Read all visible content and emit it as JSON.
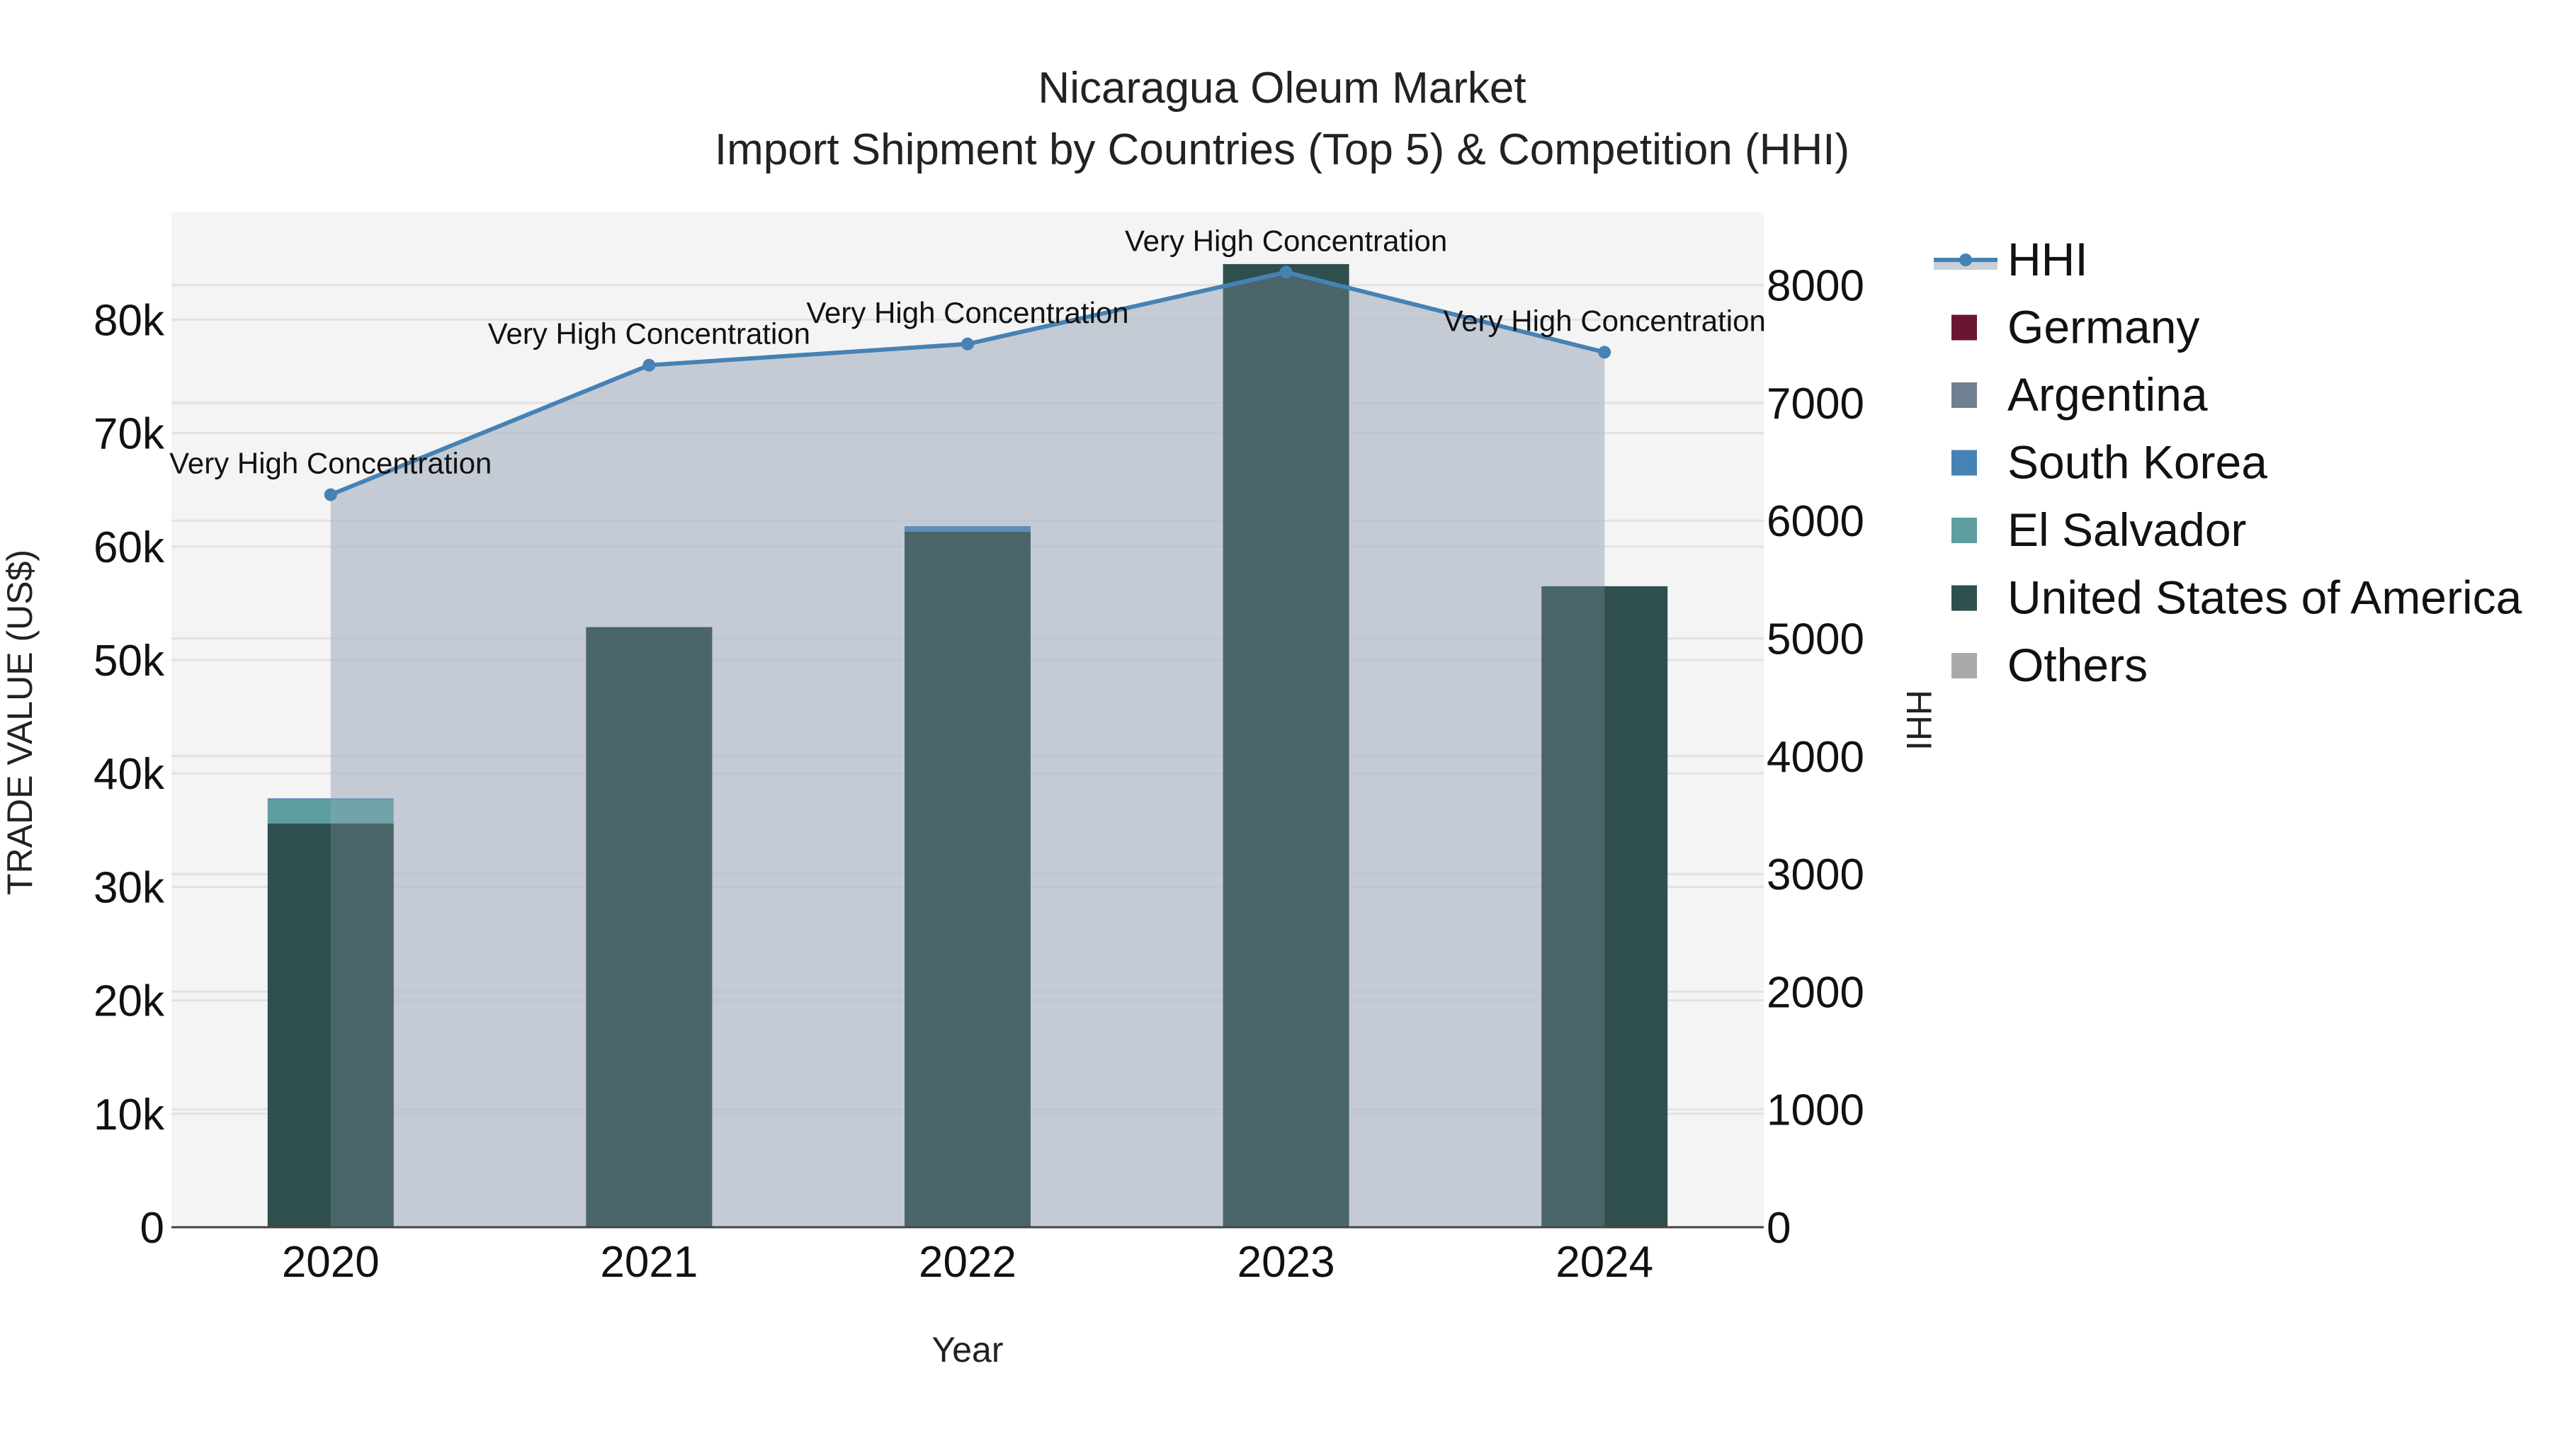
{
  "title": {
    "line1": "Nicaragua Oleum Market",
    "line2": "Import Shipment by Countries (Top 5) & Competition (HHI)"
  },
  "axes": {
    "x_label": "Year",
    "y_left_label": "TRADE VALUE (US$)",
    "y_right_label": "HHI",
    "y_left_ticks": [
      "0",
      "10k",
      "20k",
      "30k",
      "40k",
      "50k",
      "60k",
      "70k",
      "80k"
    ],
    "y_right_ticks": [
      "0",
      "1000",
      "2000",
      "3000",
      "4000",
      "5000",
      "6000",
      "7000",
      "8000"
    ],
    "x_ticks": [
      "2020",
      "2021",
      "2022",
      "2023",
      "2024"
    ]
  },
  "legend": {
    "items": [
      {
        "label": "HHI",
        "color": "#4682b4",
        "type": "line"
      },
      {
        "label": "Germany",
        "color": "#6b1535",
        "type": "bar"
      },
      {
        "label": "Argentina",
        "color": "#708090",
        "type": "bar"
      },
      {
        "label": "South Korea",
        "color": "#4682b4",
        "type": "bar"
      },
      {
        "label": "El Salvador",
        "color": "#5f9ea0",
        "type": "bar"
      },
      {
        "label": "United States of America",
        "color": "#2f4f4f",
        "type": "bar"
      },
      {
        "label": "Others",
        "color": "#a9a9a9",
        "type": "bar"
      }
    ]
  },
  "chart_data": {
    "type": "bar",
    "title": "Nicaragua Oleum Market - Import Shipment by Countries (Top 5) & Competition (HHI)",
    "xlabel": "Year",
    "ylabel": "TRADE VALUE (US$)",
    "y2label": "HHI",
    "ylim": [
      0,
      89000
    ],
    "y2lim": [
      0,
      8600
    ],
    "barmode": "stack",
    "categories": [
      "2020",
      "2021",
      "2022",
      "2023",
      "2024"
    ],
    "series": [
      {
        "name": "Germany",
        "color": "#6b1535",
        "values": [
          0,
          0,
          0,
          0,
          0
        ]
      },
      {
        "name": "Argentina",
        "color": "#708090",
        "values": [
          0,
          0,
          0,
          0,
          0
        ]
      },
      {
        "name": "United States of America",
        "color": "#2f4f4f",
        "values": [
          35600,
          52900,
          61300,
          84900,
          56500
        ]
      },
      {
        "name": "El Salvador",
        "color": "#5f9ea0",
        "values": [
          2100,
          0,
          0,
          0,
          0
        ]
      },
      {
        "name": "South Korea",
        "color": "#4682b4",
        "values": [
          100,
          0,
          500,
          0,
          0
        ]
      },
      {
        "name": "Others",
        "color": "#a9a9a9",
        "values": [
          0,
          0,
          0,
          0,
          0
        ]
      }
    ],
    "line_series": {
      "name": "HHI",
      "axis": "right",
      "color": "#4682b4",
      "fill": "tozeroy",
      "values": [
        6220,
        7320,
        7500,
        8110,
        7430
      ],
      "annotations": [
        "Very High Concentration",
        "Very High Concentration",
        "Very High Concentration",
        "Very High Concentration",
        "Very High Concentration"
      ]
    },
    "grid": true,
    "legend_position": "right"
  }
}
